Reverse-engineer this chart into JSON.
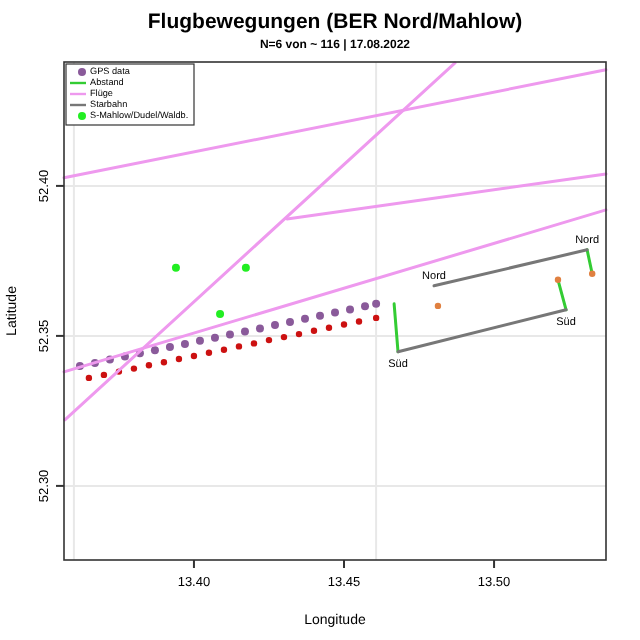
{
  "chart_data": {
    "type": "scatter",
    "title": "Flugbewegungen (BER Nord/Mahlow)",
    "subtitle": "N=6 von ~ 116 | 17.08.2022",
    "xlabel": "Longitude",
    "ylabel": "Latitude",
    "xlim": [
      13.3567,
      13.5373
    ],
    "ylim": [
      52.2753,
      52.4413
    ],
    "xticks": [
      {
        "value": 13.4,
        "label": "13.40"
      },
      {
        "value": 13.45,
        "label": "13.45"
      },
      {
        "value": 13.5,
        "label": "13.50"
      }
    ],
    "yticks": [
      {
        "value": 52.3,
        "label": "52.30"
      },
      {
        "value": 52.35,
        "label": "52.35"
      },
      {
        "value": 52.4,
        "label": "52.40"
      }
    ],
    "grid": "y",
    "legend": "top left",
    "ref_lines": [
      {
        "axis": "x",
        "value": 13.4607,
        "color": "#e8e8e8"
      },
      {
        "axis": "x",
        "value": 13.36,
        "color": "#e8e8e8"
      }
    ],
    "series": [
      {
        "name": "GPS data",
        "marker": "circle",
        "color": "#8a5a9a",
        "x": [
          13.362,
          13.367,
          13.372,
          13.377,
          13.382,
          13.387,
          13.392,
          13.397,
          13.402,
          13.407,
          13.412,
          13.417,
          13.422,
          13.427,
          13.432,
          13.437,
          13.442,
          13.447,
          13.452,
          13.457,
          13.4607
        ],
        "values": [
          52.34,
          52.341,
          52.3421,
          52.3431,
          52.3442,
          52.3452,
          52.3463,
          52.3473,
          52.3484,
          52.3494,
          52.3505,
          52.3515,
          52.3525,
          52.3536,
          52.3546,
          52.3557,
          52.3567,
          52.3578,
          52.3588,
          52.3599,
          52.3607
        ]
      },
      {
        "marker": "circle",
        "color": "#cc1111",
        "x": [
          13.365,
          13.37,
          13.375,
          13.38,
          13.385,
          13.39,
          13.395,
          13.4,
          13.405,
          13.41,
          13.415,
          13.42,
          13.425,
          13.43,
          13.435,
          13.44,
          13.445,
          13.45,
          13.455,
          13.4607
        ],
        "values": [
          52.336,
          52.337,
          52.3381,
          52.3391,
          52.3402,
          52.3412,
          52.3423,
          52.3433,
          52.3444,
          52.3454,
          52.3465,
          52.3475,
          52.3486,
          52.3496,
          52.3506,
          52.3517,
          52.3527,
          52.3538,
          52.3548,
          52.356
        ]
      },
      {
        "name": "Abstand",
        "type": "line",
        "color": "#33cc33",
        "x": [
          13.4667,
          13.468
        ],
        "values": [
          52.3607,
          52.3447
        ]
      },
      {
        "type": "line",
        "color": "#33cc33",
        "x": [
          13.5213,
          13.524
        ],
        "values": [
          52.3687,
          52.3587
        ]
      },
      {
        "type": "line",
        "color": "#33cc33",
        "x": [
          13.531,
          13.5327
        ],
        "values": [
          52.3787,
          52.3707
        ]
      },
      {
        "name": "Flüge",
        "type": "line",
        "color": "#ee99ee",
        "x": [
          13.3567,
          13.5373
        ],
        "values": [
          52.338,
          52.392
        ]
      },
      {
        "type": "line",
        "color": "#ee99ee",
        "x": [
          13.3567,
          13.5373
        ],
        "values": [
          52.4027,
          52.4387
        ]
      },
      {
        "type": "line",
        "color": "#ee99ee",
        "x": [
          13.431,
          13.5373
        ],
        "values": [
          52.389,
          52.404
        ]
      },
      {
        "type": "line",
        "color": "#ee99ee",
        "x": [
          13.357,
          13.487
        ],
        "values": [
          52.322,
          52.441
        ]
      },
      {
        "name": "Starbahn",
        "type": "line",
        "color": "#777777",
        "x": [
          13.48,
          13.531
        ],
        "values": [
          52.3667,
          52.3787
        ]
      },
      {
        "type": "line",
        "color": "#777777",
        "x": [
          13.468,
          13.524
        ],
        "values": [
          52.3447,
          52.3587
        ]
      },
      {
        "name": "S-Mahlow/Dudel/Waldb.",
        "marker": "circle",
        "color": "#22ee22",
        "x": [
          13.394,
          13.4173,
          13.4087
        ],
        "values": [
          52.3727,
          52.3727,
          52.3573
        ]
      },
      {
        "marker": "circle",
        "color": "#e08040",
        "x": [
          13.4813,
          13.5213,
          13.5327
        ],
        "values": [
          52.36,
          52.3687,
          52.3707
        ]
      }
    ],
    "annotations": [
      {
        "text": "Nord",
        "x": 13.48,
        "y": 52.3667
      },
      {
        "text": "Nord",
        "x": 13.531,
        "y": 52.3787
      },
      {
        "text": "Süd",
        "x": 13.468,
        "y": 52.3447
      },
      {
        "text": "Süd",
        "x": 13.524,
        "y": 52.3587
      }
    ]
  }
}
